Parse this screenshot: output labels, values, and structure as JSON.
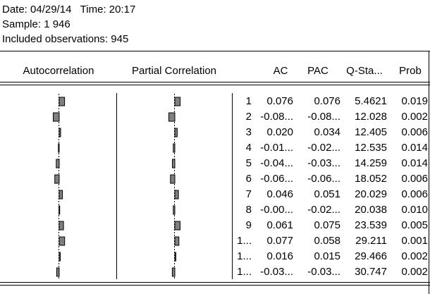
{
  "header": {
    "date_line": "Date: 04/29/14   Time: 20:17",
    "sample": "Sample: 1 946",
    "observations": "Included observations: 945"
  },
  "table": {
    "columns": [
      "Autocorrelation",
      "Partial Correlation",
      "AC",
      "PAC",
      "Q-Sta...",
      "Prob"
    ],
    "rows": [
      {
        "lag": "1",
        "ac": 0.076,
        "ac_label": "0.076",
        "pac": 0.076,
        "pac_label": "0.076",
        "q": "5.4621",
        "prob": "0.019"
      },
      {
        "lag": "2",
        "ac": -0.085,
        "ac_label": "-0.08...",
        "pac": -0.085,
        "pac_label": "-0.08...",
        "q": "12.028",
        "prob": "0.002"
      },
      {
        "lag": "3",
        "ac": 0.02,
        "ac_label": "0.020",
        "pac": 0.034,
        "pac_label": "0.034",
        "q": "12.405",
        "prob": "0.006"
      },
      {
        "lag": "4",
        "ac": -0.012,
        "ac_label": "-0.01...",
        "pac": -0.022,
        "pac_label": "-0.02...",
        "q": "12.535",
        "prob": "0.014"
      },
      {
        "lag": "5",
        "ac": -0.042,
        "ac_label": "-0.04...",
        "pac": -0.035,
        "pac_label": "-0.03...",
        "q": "14.259",
        "prob": "0.014"
      },
      {
        "lag": "6",
        "ac": -0.063,
        "ac_label": "-0.06...",
        "pac": -0.062,
        "pac_label": "-0.06...",
        "q": "18.052",
        "prob": "0.006"
      },
      {
        "lag": "7",
        "ac": 0.046,
        "ac_label": "0.046",
        "pac": 0.051,
        "pac_label": "0.051",
        "q": "20.029",
        "prob": "0.006"
      },
      {
        "lag": "8",
        "ac": -0.003,
        "ac_label": "-0.00...",
        "pac": -0.022,
        "pac_label": "-0.02...",
        "q": "20.038",
        "prob": "0.010"
      },
      {
        "lag": "9",
        "ac": 0.061,
        "ac_label": "0.061",
        "pac": 0.075,
        "pac_label": "0.075",
        "q": "23.539",
        "prob": "0.005"
      },
      {
        "lag": "1...",
        "ac": 0.077,
        "ac_label": "0.077",
        "pac": 0.058,
        "pac_label": "0.058",
        "q": "29.211",
        "prob": "0.001"
      },
      {
        "lag": "1...",
        "ac": 0.016,
        "ac_label": "0.016",
        "pac": 0.015,
        "pac_label": "0.015",
        "q": "29.466",
        "prob": "0.002"
      },
      {
        "lag": "1...",
        "ac": -0.036,
        "ac_label": "-0.03...",
        "pac": -0.036,
        "pac_label": "-0.03...",
        "q": "30.747",
        "prob": "0.002"
      }
    ]
  }
}
